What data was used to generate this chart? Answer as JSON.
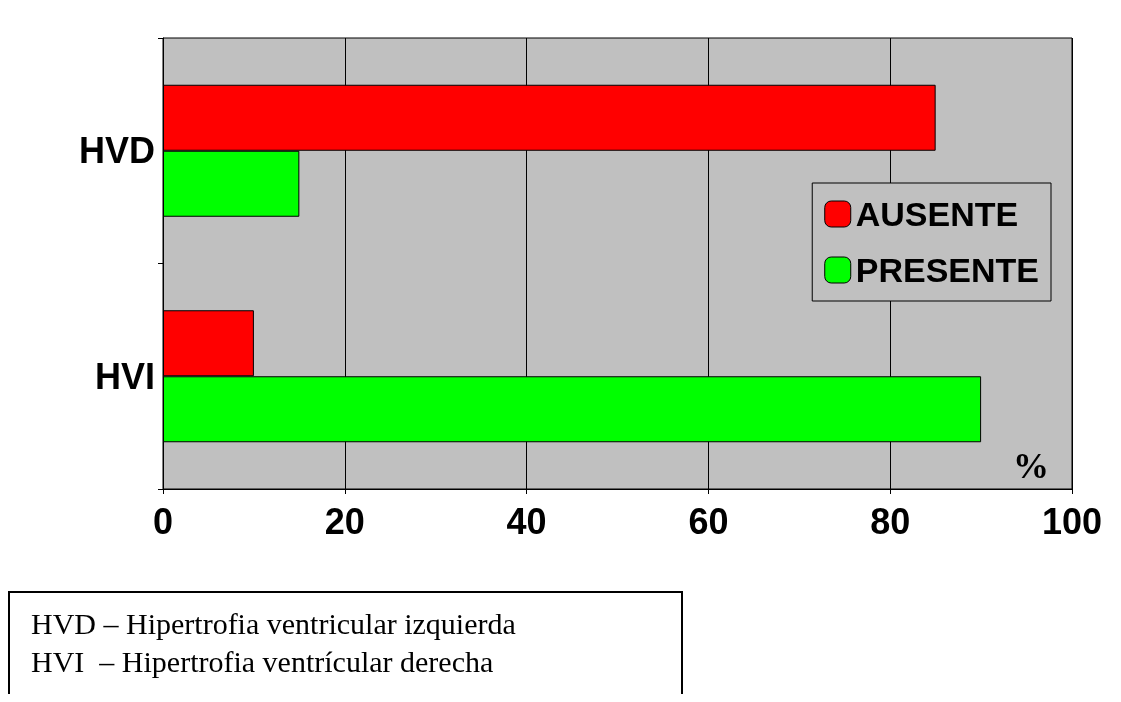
{
  "chart_data": {
    "type": "bar",
    "orientation": "horizontal",
    "categories": [
      "HVD",
      "HVI"
    ],
    "series": [
      {
        "name": "AUSENTE",
        "color": "#ff0000",
        "values": [
          85,
          10
        ]
      },
      {
        "name": "PRESENTE",
        "color": "#00ff00",
        "values": [
          15,
          90
        ]
      }
    ],
    "xlim": [
      0,
      100
    ],
    "xticks": [
      0,
      20,
      40,
      60,
      80,
      100
    ],
    "xlabel": "%",
    "grid": "x",
    "legend": "right",
    "annotations": [
      "HVD – Hipertrofia ventricular izquierda",
      "HVI  – Hipertrofia ventrícular derecha"
    ]
  }
}
